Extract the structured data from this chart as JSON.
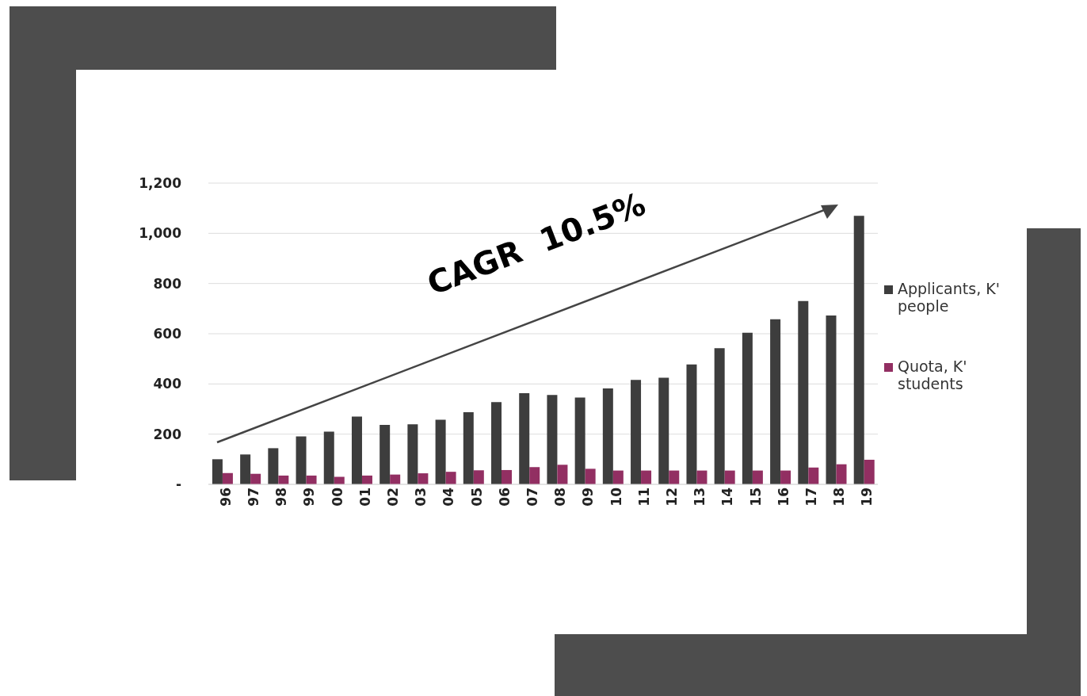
{
  "chart_data": {
    "type": "bar",
    "categories": [
      "96",
      "97",
      "98",
      "99",
      "00",
      "01",
      "02",
      "03",
      "04",
      "05",
      "06",
      "07",
      "08",
      "09",
      "10",
      "11",
      "12",
      "13",
      "14",
      "15",
      "16",
      "17",
      "18",
      "19"
    ],
    "series": [
      {
        "name": "Applicants, K' people",
        "color": "#3d3d3d",
        "values": [
          100,
          119,
          144,
          191,
          210,
          270,
          237,
          239,
          257,
          287,
          328,
          363,
          356,
          346,
          382,
          416,
          425,
          478,
          542,
          604,
          658,
          730,
          673,
          1070
        ]
      },
      {
        "name": "Quota, K' students",
        "color": "#922f62",
        "values": [
          45,
          42,
          35,
          35,
          30,
          35,
          39,
          44,
          50,
          56,
          57,
          69,
          78,
          62,
          55,
          55,
          55,
          55,
          55,
          55,
          55,
          67,
          80,
          98
        ]
      }
    ],
    "ylim": [
      0,
      1200
    ],
    "yticks": [
      {
        "value": 0,
        "label": "-"
      },
      200,
      400,
      600,
      800,
      {
        "value": 1000,
        "label": "1,000"
      },
      {
        "value": 1200,
        "label": "1,200"
      }
    ],
    "grid": "y",
    "legend": "right",
    "annotations": [
      "CAGR  10.5%"
    ]
  }
}
